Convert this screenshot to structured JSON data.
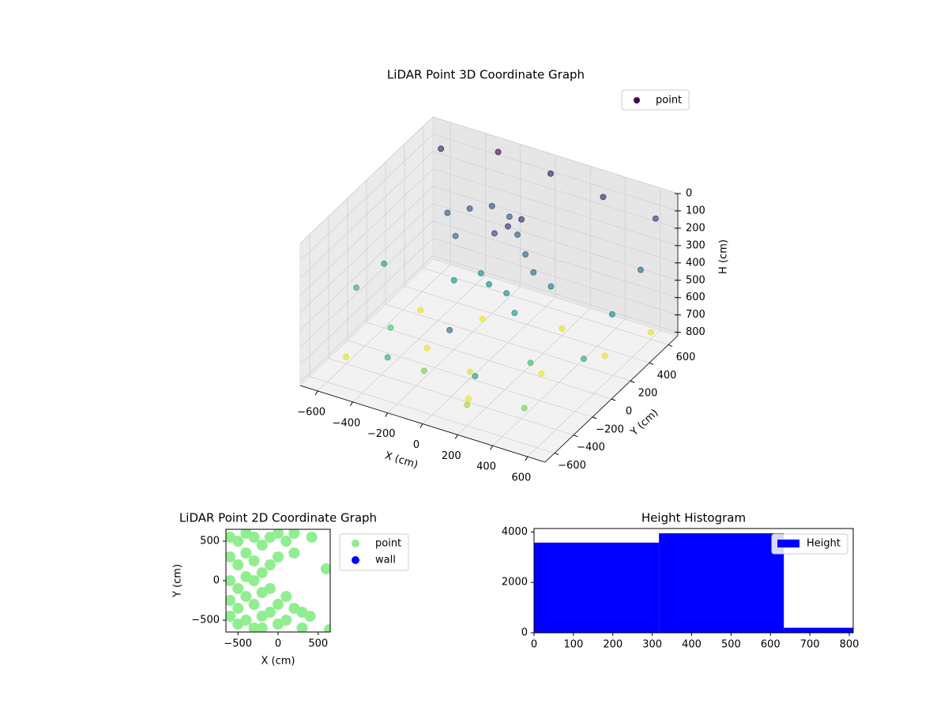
{
  "chart_data": [
    {
      "type": "scatter3d",
      "title": "LiDAR Point 3D Coordinate Graph",
      "xlabel": "X (cm)",
      "ylabel": "Y (cm)",
      "zlabel": "H (cm)",
      "xlim": [
        -700,
        700
      ],
      "ylim": [
        -700,
        700
      ],
      "zlim": [
        0,
        820
      ],
      "z_inverted": true,
      "xticks": [
        {
          "value": -600,
          "label": "−600"
        },
        {
          "value": -400,
          "label": "−400"
        },
        {
          "value": -200,
          "label": "−200"
        },
        0,
        200,
        400,
        600
      ],
      "yticks": [
        {
          "value": -600,
          "label": "−600"
        },
        {
          "value": -400,
          "label": "−400"
        },
        {
          "value": -200,
          "label": "−200"
        },
        0,
        200,
        400,
        600
      ],
      "zticks": [
        0,
        100,
        200,
        300,
        400,
        500,
        600,
        700,
        800
      ],
      "colormap": "viridis",
      "legend": "upper right",
      "series": [
        {
          "name": "point",
          "color": "#440154",
          "x": [
            -400,
            -300,
            -200,
            -100,
            0,
            100,
            200,
            0,
            -100,
            -200,
            100,
            200,
            300,
            -300,
            0,
            50,
            -50,
            -600,
            -300,
            0,
            300,
            600,
            650,
            650,
            650,
            -650,
            -600,
            -400,
            -100,
            200,
            500,
            400,
            -600,
            -300,
            0,
            300,
            500,
            -200,
            600,
            -500,
            200,
            100,
            -200,
            300,
            100
          ],
          "y": [
            300,
            350,
            400,
            400,
            300,
            200,
            100,
            0,
            100,
            0,
            0,
            -100,
            100,
            200,
            200,
            250,
            150,
            600,
            650,
            650,
            650,
            650,
            400,
            100,
            -200,
            -200,
            0,
            -300,
            -500,
            -600,
            -550,
            -300,
            -400,
            -100,
            -200,
            0,
            300,
            300,
            600,
            200,
            400,
            -400,
            -700,
            -700,
            -600
          ],
          "z": [
            250,
            220,
            200,
            230,
            250,
            280,
            300,
            380,
            400,
            420,
            400,
            430,
            350,
            300,
            150,
            120,
            180,
            100,
            50,
            80,
            120,
            150,
            300,
            400,
            500,
            500,
            450,
            600,
            650,
            700,
            650,
            550,
            780,
            790,
            780,
            800,
            790,
            800,
            780,
            790,
            780,
            800,
            500,
            450,
            300
          ]
        }
      ]
    },
    {
      "type": "scatter",
      "title": "LiDAR Point 2D Coordinate Graph",
      "xlabel": "X (cm)",
      "ylabel": "Y (cm)",
      "xlim": [
        -650,
        650
      ],
      "ylim": [
        -650,
        650
      ],
      "xticks": [
        {
          "value": -500,
          "label": "−500"
        },
        0,
        500
      ],
      "yticks": [
        {
          "value": -500,
          "label": "−500"
        },
        0,
        500
      ],
      "legend": "outside right",
      "series": [
        {
          "name": "point",
          "color": "#90ee90",
          "x": [
            -600,
            -600,
            -600,
            -600,
            -600,
            -500,
            -500,
            -500,
            -500,
            -500,
            -400,
            -400,
            -400,
            -400,
            -400,
            -300,
            -300,
            -300,
            -300,
            -300,
            -200,
            -200,
            -200,
            -200,
            -100,
            -100,
            -100,
            -100,
            0,
            0,
            0,
            0,
            100,
            100,
            100,
            200,
            200,
            300,
            300,
            400,
            420,
            600,
            640,
            -200,
            200
          ],
          "y": [
            550,
            300,
            0,
            -250,
            -450,
            500,
            200,
            -100,
            -350,
            -550,
            600,
            350,
            50,
            -200,
            -500,
            550,
            250,
            0,
            -300,
            -600,
            450,
            100,
            -150,
            -450,
            550,
            200,
            -100,
            -400,
            600,
            300,
            -300,
            -550,
            500,
            -200,
            -500,
            350,
            -350,
            -400,
            -600,
            -450,
            550,
            150,
            -620,
            -600,
            600
          ]
        },
        {
          "name": "wall",
          "color": "#0000ff",
          "x": [],
          "y": []
        }
      ]
    },
    {
      "type": "histogram",
      "title": "Height Histogram",
      "xlim": [
        0,
        810
      ],
      "ylim": [
        0,
        4140
      ],
      "xticks": [
        0,
        100,
        200,
        300,
        400,
        500,
        600,
        700,
        800
      ],
      "yticks": [
        0,
        2000,
        4000
      ],
      "legend": "upper right",
      "series": [
        {
          "name": "Height",
          "color": "#0000ff",
          "bins": [
            0,
            317,
            634,
            810
          ],
          "values": [
            3580,
            3950,
            200
          ]
        }
      ]
    }
  ]
}
